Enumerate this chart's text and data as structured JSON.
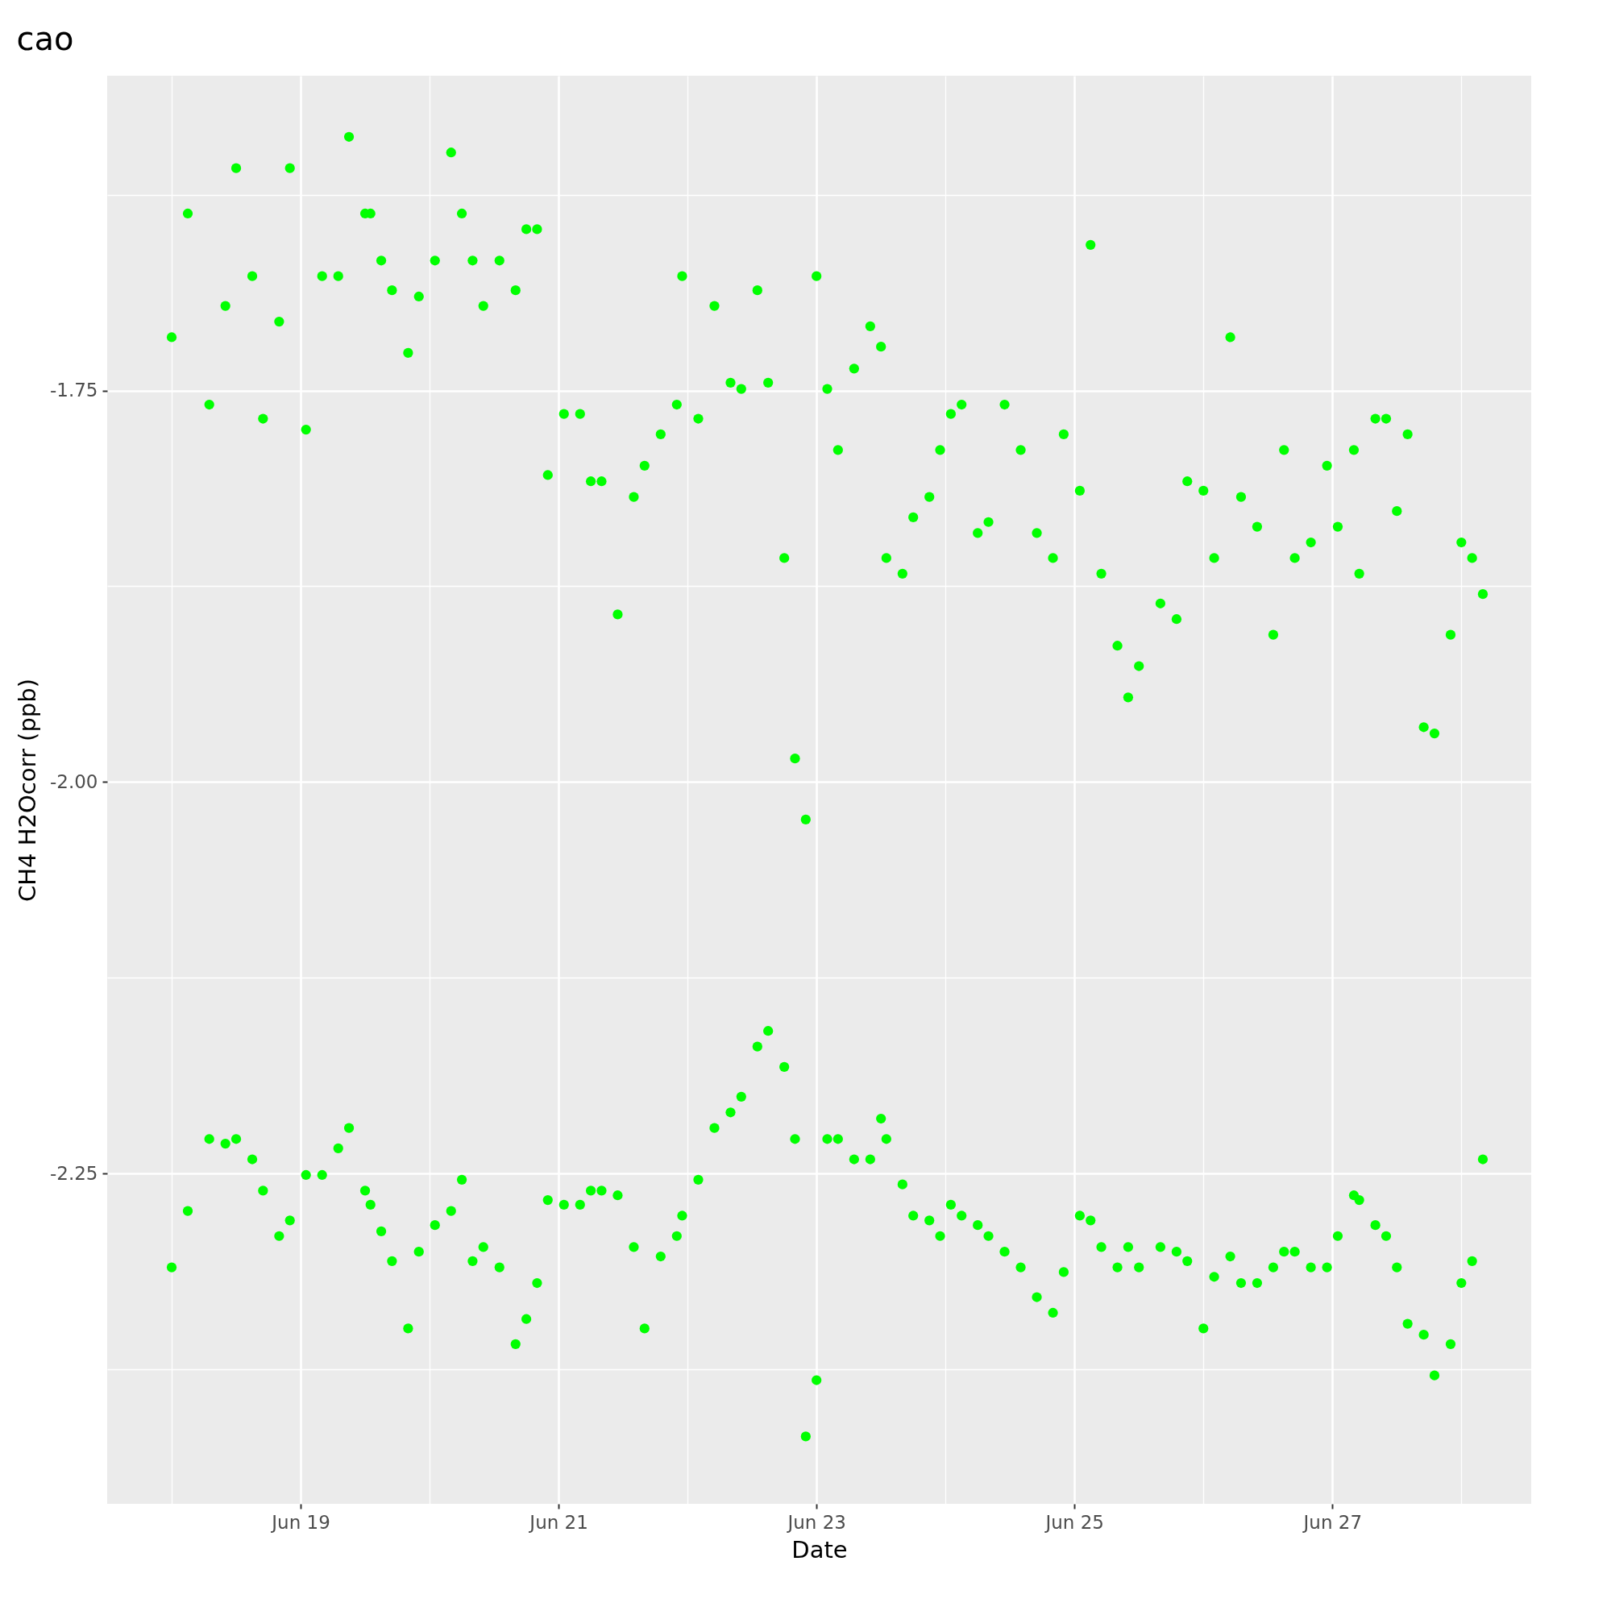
{
  "chart_data": {
    "type": "scatter",
    "title": "cao",
    "xlabel": "Date",
    "ylabel": "CH4 H2Ocorr (ppb)",
    "grid": true,
    "marker": "circle",
    "xlim": [
      "--06-17T12:00",
      "--06-28T13:00"
    ],
    "xticks": [
      {
        "value": "--06-18",
        "label": null
      },
      {
        "value": "--06-19",
        "label": "Jun 19"
      },
      {
        "value": "--06-20",
        "label": null
      },
      {
        "value": "--06-21",
        "label": "Jun 21"
      },
      {
        "value": "--06-22",
        "label": null
      },
      {
        "value": "--06-23",
        "label": "Jun 23"
      },
      {
        "value": "--06-24",
        "label": null
      },
      {
        "value": "--06-25",
        "label": "Jun 25"
      },
      {
        "value": "--06-26",
        "label": null
      },
      {
        "value": "--06-27",
        "label": "Jun 27"
      },
      {
        "value": "--06-28",
        "label": null
      }
    ],
    "ylim": [
      -2.461,
      -1.549
    ],
    "yticks": [
      {
        "value": -2.375,
        "label": null
      },
      {
        "value": -2.25,
        "label": "-2.25"
      },
      {
        "value": -2.125,
        "label": null
      },
      {
        "value": -2.0,
        "label": "-2.00"
      },
      {
        "value": -1.875,
        "label": null
      },
      {
        "value": -1.75,
        "label": "-1.75"
      },
      {
        "value": -1.625,
        "label": null
      }
    ],
    "series": [
      {
        "color": "#00ff00",
        "x": [
          "--06-18T00:00",
          "--06-18T00:00",
          "--06-18T03:00",
          "--06-18T03:00",
          "--06-18T07:00",
          "--06-18T07:00",
          "--06-18T10:00",
          "--06-18T10:00",
          "--06-18T12:00",
          "--06-18T12:00",
          "--06-18T15:00",
          "--06-18T15:00",
          "--06-18T17:00",
          "--06-18T17:00",
          "--06-18T20:00",
          "--06-18T20:00",
          "--06-18T22:00",
          "--06-18T22:00",
          "--06-19T01:00",
          "--06-19T01:00",
          "--06-19T04:00",
          "--06-19T04:00",
          "--06-19T07:00",
          "--06-19T07:00",
          "--06-19T09:00",
          "--06-19T09:00",
          "--06-19T12:00",
          "--06-19T12:00",
          "--06-19T13:00",
          "--06-19T13:00",
          "--06-19T15:00",
          "--06-19T15:00",
          "--06-19T17:00",
          "--06-19T17:00",
          "--06-19T20:00",
          "--06-19T20:00",
          "--06-19T22:00",
          "--06-19T22:00",
          "--06-20T01:00",
          "--06-20T01:00",
          "--06-20T04:00",
          "--06-20T04:00",
          "--06-20T06:00",
          "--06-20T06:00",
          "--06-20T08:00",
          "--06-20T08:00",
          "--06-20T10:00",
          "--06-20T10:00",
          "--06-20T13:00",
          "--06-20T13:00",
          "--06-20T16:00",
          "--06-20T16:00",
          "--06-20T18:00",
          "--06-20T18:00",
          "--06-20T20:00",
          "--06-20T20:00",
          "--06-20T22:00",
          "--06-20T22:00",
          "--06-21T01:00",
          "--06-21T01:00",
          "--06-21T04:00",
          "--06-21T04:00",
          "--06-21T06:00",
          "--06-21T06:00",
          "--06-21T08:00",
          "--06-21T08:00",
          "--06-21T11:00",
          "--06-21T11:00",
          "--06-21T14:00",
          "--06-21T14:00",
          "--06-21T16:00",
          "--06-21T16:00",
          "--06-21T19:00",
          "--06-21T19:00",
          "--06-21T22:00",
          "--06-21T22:00",
          "--06-21T23:00",
          "--06-21T23:00",
          "--06-22T02:00",
          "--06-22T02:00",
          "--06-22T05:00",
          "--06-22T05:00",
          "--06-22T08:00",
          "--06-22T08:00",
          "--06-22T10:00",
          "--06-22T10:00",
          "--06-22T13:00",
          "--06-22T13:00",
          "--06-22T15:00",
          "--06-22T15:00",
          "--06-22T18:00",
          "--06-22T18:00",
          "--06-22T20:00",
          "--06-22T20:00",
          "--06-22T22:00",
          "--06-22T22:00",
          "--06-23T00:00",
          "--06-23T00:00",
          "--06-23T02:00",
          "--06-23T02:00",
          "--06-23T04:00",
          "--06-23T04:00",
          "--06-23T07:00",
          "--06-23T07:00",
          "--06-23T10:00",
          "--06-23T10:00",
          "--06-23T12:00",
          "--06-23T12:00",
          "--06-23T13:00",
          "--06-23T13:00",
          "--06-23T16:00",
          "--06-23T16:00",
          "--06-23T18:00",
          "--06-23T18:00",
          "--06-23T21:00",
          "--06-23T21:00",
          "--06-23T23:00",
          "--06-23T23:00",
          "--06-24T01:00",
          "--06-24T01:00",
          "--06-24T03:00",
          "--06-24T03:00",
          "--06-24T06:00",
          "--06-24T06:00",
          "--06-24T08:00",
          "--06-24T08:00",
          "--06-24T11:00",
          "--06-24T11:00",
          "--06-24T14:00",
          "--06-24T14:00",
          "--06-24T17:00",
          "--06-24T17:00",
          "--06-24T20:00",
          "--06-24T20:00",
          "--06-24T22:00",
          "--06-24T22:00",
          "--06-25T01:00",
          "--06-25T01:00",
          "--06-25T03:00",
          "--06-25T03:00",
          "--06-25T05:00",
          "--06-25T05:00",
          "--06-25T08:00",
          "--06-25T08:00",
          "--06-25T10:00",
          "--06-25T10:00",
          "--06-25T12:00",
          "--06-25T12:00",
          "--06-25T16:00",
          "--06-25T16:00",
          "--06-25T19:00",
          "--06-25T19:00",
          "--06-25T21:00",
          "--06-25T21:00",
          "--06-26T00:00",
          "--06-26T00:00",
          "--06-26T02:00",
          "--06-26T02:00",
          "--06-26T05:00",
          "--06-26T05:00",
          "--06-26T07:00",
          "--06-26T07:00",
          "--06-26T10:00",
          "--06-26T10:00",
          "--06-26T13:00",
          "--06-26T13:00",
          "--06-26T15:00",
          "--06-26T15:00",
          "--06-26T17:00",
          "--06-26T17:00",
          "--06-26T20:00",
          "--06-26T20:00",
          "--06-26T23:00",
          "--06-26T23:00",
          "--06-27T01:00",
          "--06-27T01:00",
          "--06-27T04:00",
          "--06-27T04:00",
          "--06-27T05:00",
          "--06-27T05:00",
          "--06-27T08:00",
          "--06-27T08:00",
          "--06-27T10:00",
          "--06-27T10:00",
          "--06-27T12:00",
          "--06-27T12:00",
          "--06-27T14:00",
          "--06-27T14:00",
          "--06-27T17:00",
          "--06-27T17:00",
          "--06-27T19:00",
          "--06-27T19:00",
          "--06-27T22:00",
          "--06-27T22:00",
          "--06-28T00:00",
          "--06-28T00:00",
          "--06-28T02:00",
          "--06-28T02:00",
          "--06-28T04:00",
          "--06-28T04:00"
        ],
        "values": [
          -1.716,
          -2.31,
          -1.637,
          -2.274,
          -1.759,
          -2.228,
          -1.696,
          -2.231,
          -1.608,
          -2.228,
          -1.677,
          -2.241,
          -1.768,
          -2.261,
          -1.706,
          -2.29,
          -1.608,
          -2.28,
          -1.775,
          -2.251,
          -1.677,
          -2.251,
          -1.677,
          -2.234,
          -1.588,
          -2.221,
          -1.637,
          -2.261,
          -1.637,
          -2.27,
          -1.667,
          -2.287,
          -1.686,
          -2.306,
          -1.726,
          -2.349,
          -1.69,
          -2.3,
          -1.667,
          -2.283,
          -1.598,
          -2.274,
          -1.637,
          -2.254,
          -1.667,
          -2.306,
          -1.696,
          -2.297,
          -1.667,
          -2.31,
          -1.686,
          -2.359,
          -1.647,
          -2.343,
          -1.647,
          -2.32,
          -1.804,
          -2.267,
          -1.765,
          -2.27,
          -1.765,
          -2.27,
          -1.808,
          -2.261,
          -1.808,
          -2.261,
          -1.893,
          -2.264,
          -1.818,
          -2.297,
          -1.798,
          -2.349,
          -1.778,
          -2.303,
          -1.759,
          -2.29,
          -1.677,
          -2.277,
          -1.768,
          -2.254,
          -1.696,
          -2.221,
          -1.745,
          -2.211,
          -1.749,
          -2.201,
          -1.686,
          -2.169,
          -1.745,
          -2.159,
          -1.857,
          -2.182,
          -1.985,
          -2.228,
          -2.024,
          -2.418,
          -1.677,
          -2.382,
          -1.749,
          -2.228,
          -1.788,
          -2.228,
          -1.736,
          -2.241,
          -1.709,
          -2.241,
          -1.722,
          -2.215,
          -1.857,
          -2.228,
          -1.867,
          -2.257,
          -1.831,
          -2.277,
          -1.818,
          -2.28,
          -1.788,
          -2.29,
          -1.765,
          -2.27,
          -1.759,
          -2.277,
          -1.841,
          -2.283,
          -1.834,
          -2.29,
          -1.759,
          -2.3,
          -1.788,
          -2.31,
          -1.841,
          -2.329,
          -1.857,
          -2.339,
          -1.778,
          -2.313,
          -1.814,
          -2.277,
          -1.657,
          -2.28,
          -1.867,
          -2.297,
          -1.913,
          -2.31,
          -1.946,
          -2.297,
          -1.926,
          -2.31,
          -1.886,
          -2.297,
          -1.896,
          -2.3,
          -1.808,
          -2.306,
          -1.814,
          -2.349,
          -1.857,
          -2.316,
          -1.716,
          -2.303,
          -1.818,
          -2.32,
          -1.837,
          -2.32,
          -1.906,
          -2.31,
          -1.788,
          -2.3,
          -1.857,
          -2.3,
          -1.847,
          -2.31,
          -1.798,
          -2.31,
          -1.837,
          -2.29,
          -1.788,
          -2.264,
          -1.867,
          -2.267,
          -1.768,
          -2.283,
          -1.768,
          -2.29,
          -1.827,
          -2.31,
          -1.778,
          -2.346,
          -1.965,
          -2.353,
          -1.969,
          -2.379,
          -1.906,
          -2.359,
          -1.847,
          -2.32,
          -1.857,
          -2.306,
          -1.88,
          -2.241
        ]
      }
    ]
  }
}
